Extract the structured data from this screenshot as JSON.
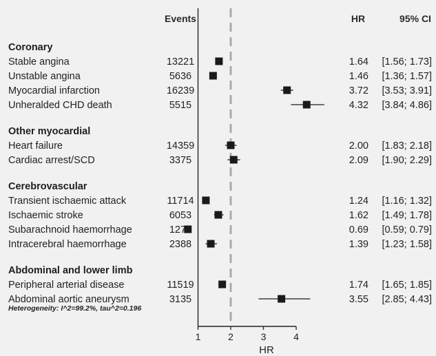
{
  "chart_data": {
    "type": "forest",
    "headers": {
      "events": "Events",
      "hr": "HR",
      "ci": "95% CI"
    },
    "xlabel": "HR",
    "xlim": [
      0.6,
      4.6
    ],
    "xticks": [
      1,
      2,
      3,
      4
    ],
    "reference_line": 2,
    "groups": [
      {
        "name": "Coronary",
        "rows": [
          {
            "label": "Stable angina",
            "events": "13221",
            "hr": 1.64,
            "lo": 1.56,
            "hi": 1.73,
            "hr_text": "1.64",
            "ci_text": "[1.56; 1.73]"
          },
          {
            "label": "Unstable angina",
            "events": "5636",
            "hr": 1.46,
            "lo": 1.36,
            "hi": 1.57,
            "hr_text": "1.46",
            "ci_text": "[1.36; 1.57]"
          },
          {
            "label": "Myocardial infarction",
            "events": "16239",
            "hr": 3.72,
            "lo": 3.53,
            "hi": 3.91,
            "hr_text": "3.72",
            "ci_text": "[3.53; 3.91]"
          },
          {
            "label": "Unheralded CHD death",
            "events": "5515",
            "hr": 4.32,
            "lo": 3.84,
            "hi": 4.86,
            "hr_text": "4.32",
            "ci_text": "[3.84; 4.86]"
          }
        ]
      },
      {
        "name": "Other myocardial",
        "rows": [
          {
            "label": "Heart failure",
            "events": "14359",
            "hr": 2.0,
            "lo": 1.83,
            "hi": 2.18,
            "hr_text": "2.00",
            "ci_text": "[1.83; 2.18]"
          },
          {
            "label": "Cardiac arrest/SCD",
            "events": "3375",
            "hr": 2.09,
            "lo": 1.9,
            "hi": 2.29,
            "hr_text": "2.09",
            "ci_text": "[1.90; 2.29]"
          }
        ]
      },
      {
        "name": "Cerebrovascular",
        "rows": [
          {
            "label": "Transient ischaemic attack",
            "events": "11714",
            "hr": 1.24,
            "lo": 1.16,
            "hi": 1.32,
            "hr_text": "1.24",
            "ci_text": "[1.16; 1.32]"
          },
          {
            "label": "Ischaemic stroke",
            "events": "6053",
            "hr": 1.62,
            "lo": 1.49,
            "hi": 1.78,
            "hr_text": "1.62",
            "ci_text": "[1.49; 1.78]"
          },
          {
            "label": "Subarachnoid haemorrhage",
            "events": "1278",
            "hr": 0.69,
            "lo": 0.59,
            "hi": 0.79,
            "hr_text": "0.69",
            "ci_text": "[0.59; 0.79]"
          },
          {
            "label": "Intracerebral haemorrhage",
            "events": "2388",
            "hr": 1.39,
            "lo": 1.23,
            "hi": 1.58,
            "hr_text": "1.39",
            "ci_text": "[1.23; 1.58]"
          }
        ]
      },
      {
        "name": "Abdominal and lower limb",
        "rows": [
          {
            "label": "Peripheral arterial disease",
            "events": "11519",
            "hr": 1.74,
            "lo": 1.65,
            "hi": 1.85,
            "hr_text": "1.74",
            "ci_text": "[1.65; 1.85]"
          },
          {
            "label": "Abdominal aortic aneurysm",
            "events": "3135",
            "hr": 3.55,
            "lo": 2.85,
            "hi": 4.43,
            "hr_text": "3.55",
            "ci_text": "[2.85; 4.43]"
          }
        ]
      }
    ],
    "heterogeneity": "Heterogeneity: I^2=99.2%, tau^2=0.196",
    "colors": {
      "marker": "#1a1a1a",
      "reference_line": "#aaaaaa",
      "axis": "#222222",
      "background": "#f1f1f1"
    }
  }
}
